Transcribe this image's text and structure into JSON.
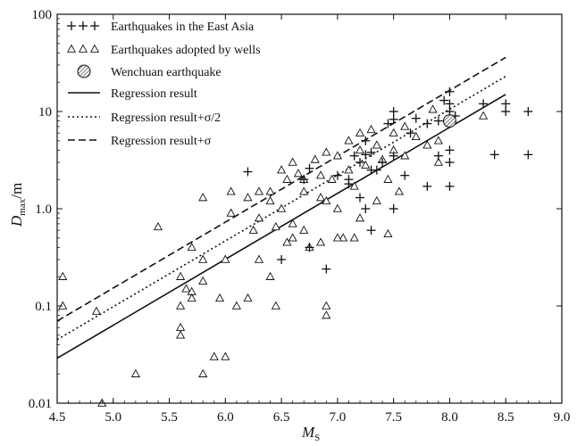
{
  "chart_data": {
    "type": "scatter",
    "xlabel": "M",
    "xlabel_sub": "S",
    "ylabel": "D",
    "ylabel_sub": "max",
    "ylabel_unit": "/m",
    "xlim": [
      4.5,
      9.0
    ],
    "ylim": [
      0.01,
      100
    ],
    "yscale": "log",
    "x_ticks": [
      4.5,
      5.0,
      5.5,
      6.0,
      6.5,
      7.0,
      7.5,
      8.0,
      8.5,
      9.0
    ],
    "x_tick_labels": [
      "4.5",
      "5.0",
      "5.5",
      "6.0",
      "6.5",
      "7.0",
      "7.5",
      "8.0",
      "8.5",
      "9.0"
    ],
    "y_ticks": [
      0.01,
      0.1,
      1,
      10,
      100
    ],
    "y_tick_labels": [
      "0.01",
      "0.1",
      "1.0",
      "10",
      "100"
    ],
    "grid": false,
    "legend_position": "top-left",
    "colors": {
      "ink": "#111111",
      "background": "#ffffff",
      "wenchuan_fill": "#9a9a9a"
    },
    "series": [
      {
        "name": "Earthquakes in the East Asia",
        "marker": "plus",
        "points": [
          [
            6.2,
            2.4
          ],
          [
            6.5,
            0.3
          ],
          [
            6.75,
            0.4
          ],
          [
            6.9,
            0.24
          ],
          [
            6.7,
            2.0
          ],
          [
            6.75,
            2.6
          ],
          [
            7.0,
            2.2
          ],
          [
            7.1,
            2.0
          ],
          [
            7.1,
            1.8
          ],
          [
            7.15,
            3.5
          ],
          [
            7.2,
            3.0
          ],
          [
            7.2,
            1.3
          ],
          [
            7.25,
            5.0
          ],
          [
            7.25,
            3.6
          ],
          [
            7.3,
            3.8
          ],
          [
            7.3,
            2.5
          ],
          [
            7.25,
            1.0
          ],
          [
            7.3,
            0.6
          ],
          [
            7.35,
            2.5
          ],
          [
            7.4,
            3.0
          ],
          [
            7.5,
            10.0
          ],
          [
            7.5,
            8.3
          ],
          [
            7.5,
            3.5
          ],
          [
            7.5,
            1.0
          ],
          [
            7.6,
            2.2
          ],
          [
            7.65,
            6.0
          ],
          [
            7.8,
            7.5
          ],
          [
            7.8,
            1.7
          ],
          [
            7.9,
            8.0
          ],
          [
            7.9,
            3.5
          ],
          [
            8.0,
            16.0
          ],
          [
            8.0,
            12.0
          ],
          [
            8.0,
            10.0
          ],
          [
            8.0,
            4.0
          ],
          [
            8.0,
            3.0
          ],
          [
            8.0,
            1.7
          ],
          [
            8.3,
            12.0
          ],
          [
            8.4,
            3.6
          ],
          [
            8.5,
            12.0
          ],
          [
            8.5,
            10.0
          ],
          [
            8.7,
            10.0
          ],
          [
            8.7,
            3.6
          ],
          [
            7.95,
            13.0
          ],
          [
            8.05,
            9.0
          ],
          [
            7.45,
            7.5
          ],
          [
            7.7,
            8.5
          ]
        ]
      },
      {
        "name": "Earthquakes adopted by wells",
        "marker": "triangle",
        "points": [
          [
            4.55,
            0.2
          ],
          [
            4.55,
            0.1
          ],
          [
            4.85,
            0.088
          ],
          [
            4.9,
            0.01
          ],
          [
            5.2,
            0.02
          ],
          [
            5.4,
            0.65
          ],
          [
            5.6,
            0.2
          ],
          [
            5.6,
            0.1
          ],
          [
            5.6,
            0.06
          ],
          [
            5.6,
            0.05
          ],
          [
            5.65,
            0.15
          ],
          [
            5.7,
            0.4
          ],
          [
            5.7,
            0.14
          ],
          [
            5.7,
            0.12
          ],
          [
            5.8,
            1.3
          ],
          [
            5.8,
            0.3
          ],
          [
            5.8,
            0.18
          ],
          [
            5.8,
            0.02
          ],
          [
            5.9,
            0.03
          ],
          [
            5.95,
            0.12
          ],
          [
            6.0,
            0.3
          ],
          [
            6.0,
            0.03
          ],
          [
            6.05,
            1.5
          ],
          [
            6.1,
            0.1
          ],
          [
            6.2,
            1.3
          ],
          [
            6.25,
            0.6
          ],
          [
            6.2,
            0.12
          ],
          [
            6.3,
            1.5
          ],
          [
            6.3,
            0.8
          ],
          [
            6.3,
            0.3
          ],
          [
            6.4,
            1.5
          ],
          [
            6.4,
            0.2
          ],
          [
            6.45,
            0.1
          ],
          [
            6.5,
            2.5
          ],
          [
            6.5,
            1.0
          ],
          [
            6.55,
            0.45
          ],
          [
            6.6,
            3.0
          ],
          [
            6.6,
            0.7
          ],
          [
            6.7,
            2.0
          ],
          [
            6.7,
            1.5
          ],
          [
            6.7,
            0.6
          ],
          [
            6.75,
            0.4
          ],
          [
            6.8,
            3.2
          ],
          [
            6.85,
            2.2
          ],
          [
            6.85,
            1.3
          ],
          [
            6.85,
            0.45
          ],
          [
            6.9,
            3.8
          ],
          [
            6.9,
            1.2
          ],
          [
            6.9,
            0.1
          ],
          [
            6.95,
            2.0
          ],
          [
            7.0,
            3.5
          ],
          [
            7.0,
            1.0
          ],
          [
            7.05,
            0.5
          ],
          [
            7.1,
            5.0
          ],
          [
            7.1,
            2.5
          ],
          [
            7.15,
            0.5
          ],
          [
            7.2,
            6.0
          ],
          [
            7.2,
            4.0
          ],
          [
            7.2,
            0.8
          ],
          [
            7.25,
            2.8
          ],
          [
            7.3,
            6.5
          ],
          [
            7.35,
            4.5
          ],
          [
            7.4,
            3.2
          ],
          [
            7.45,
            2.0
          ],
          [
            7.5,
            6.0
          ],
          [
            7.5,
            4.0
          ],
          [
            7.55,
            1.5
          ],
          [
            7.6,
            7.0
          ],
          [
            7.6,
            3.5
          ],
          [
            7.7,
            5.5
          ],
          [
            7.8,
            4.5
          ],
          [
            7.85,
            10.5
          ],
          [
            7.9,
            5.0
          ],
          [
            7.9,
            3.0
          ],
          [
            8.0,
            8.0
          ],
          [
            8.3,
            9.0
          ],
          [
            6.4,
            1.2
          ],
          [
            6.6,
            0.5
          ],
          [
            7.0,
            0.5
          ],
          [
            6.65,
            2.3
          ],
          [
            7.35,
            1.2
          ],
          [
            7.15,
            1.7
          ],
          [
            7.45,
            0.55
          ],
          [
            6.9,
            0.08
          ],
          [
            6.05,
            0.9
          ],
          [
            6.45,
            0.65
          ],
          [
            6.55,
            2.0
          ]
        ]
      },
      {
        "name": "Wenchuan earthquake",
        "marker": "hatched-circle",
        "points": [
          [
            8.0,
            8.0
          ]
        ]
      }
    ],
    "lines": [
      {
        "name": "Regression result",
        "style": "solid",
        "x": [
          4.5,
          8.5
        ],
        "y": [
          0.029,
          15.0
        ]
      },
      {
        "name": "Regression result+σ/2",
        "style": "dotted-dash",
        "x": [
          4.5,
          8.5
        ],
        "y": [
          0.045,
          23.0
        ]
      },
      {
        "name": "Regression result+σ",
        "style": "dashed",
        "x": [
          4.5,
          8.5
        ],
        "y": [
          0.07,
          36.0
        ]
      }
    ]
  }
}
